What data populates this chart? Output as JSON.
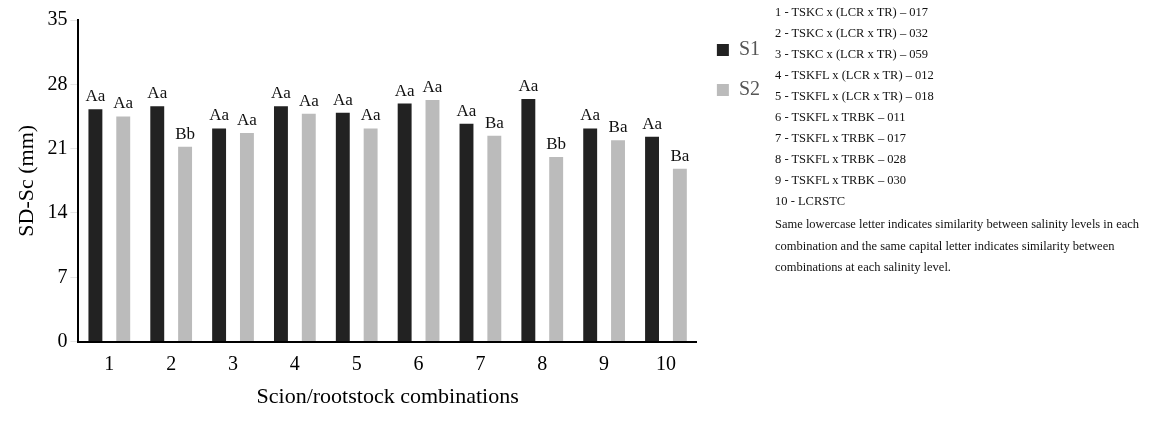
{
  "chart_data": {
    "type": "bar",
    "xlabel": "Scion/rootstock combinations",
    "ylabel": "SD-Sc (mm)",
    "categories": [
      "1",
      "2",
      "3",
      "4",
      "5",
      "6",
      "7",
      "8",
      "9",
      "10"
    ],
    "series": [
      {
        "name": "S1",
        "color": "#222222",
        "values": [
          25.3,
          25.6,
          23.2,
          25.6,
          24.9,
          25.9,
          23.7,
          26.4,
          23.2,
          22.3
        ],
        "value_labels": [
          "Aa",
          "Aa",
          "Aa",
          "Aa",
          "Aa",
          "Aa",
          "Aa",
          "Aa",
          "Aa",
          "Aa"
        ]
      },
      {
        "name": "S2",
        "color": "#bbbbbb",
        "values": [
          24.5,
          21.2,
          22.7,
          24.8,
          23.2,
          26.3,
          22.4,
          20.1,
          21.9,
          18.8
        ],
        "value_labels": [
          "Aa",
          "Bb",
          "Aa",
          "Aa",
          "Aa",
          "Aa",
          "Ba",
          "Bb",
          "Ba",
          "Ba"
        ]
      }
    ],
    "ylim": [
      0,
      35
    ],
    "yticks": [
      0,
      7,
      14,
      21,
      28,
      35
    ],
    "grid": false,
    "legend": "top right",
    "annotations": [
      "1 - TSKC x (LCR x TR) – 017",
      "2 - TSKC x (LCR x TR) – 032",
      "3 - TSKC x (LCR x TR) – 059",
      "4 - TSKFL x (LCR x TR) – 012",
      "5 - TSKFL x (LCR x TR) – 018",
      "6 - TSKFL x TRBK – 011",
      "7 - TSKFL x TRBK – 017",
      "8 - TSKFL x TRBK – 028",
      "9 - TSKFL x TRBK – 030",
      "10 - LCRSTC",
      "Same lowercase letter indicates similarity between salinity levels in each combination and the same capital letter indicates similarity between combinations at each salinity level."
    ]
  }
}
